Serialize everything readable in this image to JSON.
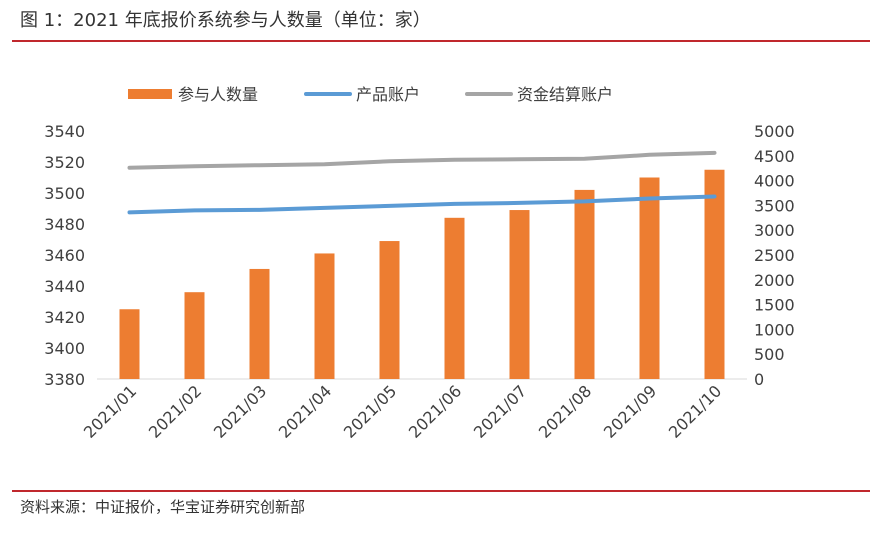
{
  "figure": {
    "title": "图 1：2021 年底报价系统参与人数量（单位：家）",
    "source": "资料来源：中证报价，华宝证券研究创新部"
  },
  "colors": {
    "rule": "#c0282d",
    "bar": "#ed7d31",
    "product": "#5b9bd5",
    "settlement": "#a5a5a5",
    "axis_text": "#404040"
  },
  "chart_data": {
    "type": "bar",
    "categories": [
      "2021/01",
      "2021/02",
      "2021/03",
      "2021/04",
      "2021/05",
      "2021/06",
      "2021/07",
      "2021/08",
      "2021/09",
      "2021/10"
    ],
    "series": [
      {
        "name": "参与人数量",
        "type": "bar",
        "axis": "left",
        "values": [
          3425,
          3436,
          3451,
          3461,
          3469,
          3484,
          3489,
          3502,
          3510,
          3515
        ]
      },
      {
        "name": "产品账户",
        "type": "line",
        "axis": "right",
        "values": [
          3360,
          3400,
          3410,
          3450,
          3490,
          3530,
          3550,
          3580,
          3640,
          3680
        ]
      },
      {
        "name": "资金结算账户",
        "type": "line",
        "axis": "right",
        "values": [
          4260,
          4290,
          4310,
          4330,
          4390,
          4420,
          4430,
          4440,
          4520,
          4560
        ]
      }
    ],
    "y_left": {
      "min": 3380,
      "max": 3540,
      "ticks": [
        3380,
        3400,
        3420,
        3440,
        3460,
        3480,
        3500,
        3520,
        3540
      ]
    },
    "y_right": {
      "min": 0,
      "max": 5000,
      "ticks": [
        0,
        500,
        1000,
        1500,
        2000,
        2500,
        3000,
        3500,
        4000,
        4500,
        5000
      ]
    },
    "grid": false,
    "legend": "top"
  }
}
